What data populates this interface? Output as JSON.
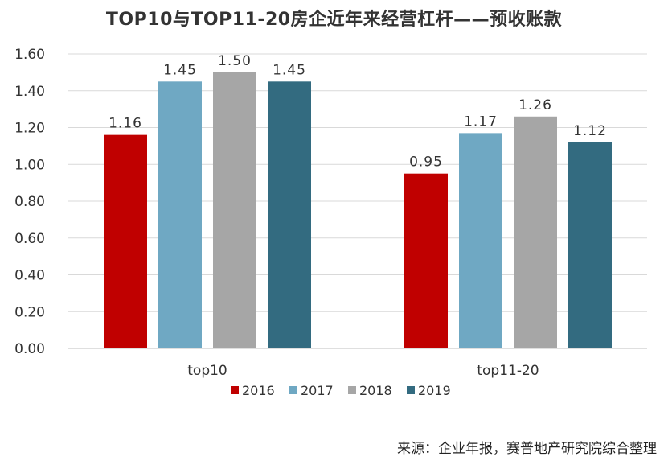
{
  "chart_data": {
    "type": "bar",
    "title": "TOP10与TOP11-20房企近年来经营杠杆——预收账款",
    "categories": [
      "top10",
      "top11-20"
    ],
    "series": [
      {
        "name": "2016",
        "values": [
          1.16,
          0.95
        ]
      },
      {
        "name": "2017",
        "values": [
          1.45,
          1.17
        ]
      },
      {
        "name": "2018",
        "values": [
          1.5,
          1.26
        ]
      },
      {
        "name": "2019",
        "values": [
          1.45,
          1.12
        ]
      }
    ],
    "colors": [
      "#c00000",
      "#6fa8c3",
      "#a6a6a6",
      "#336b80"
    ],
    "ylim": [
      0,
      1.6
    ],
    "yticks": [
      "0.00",
      "0.20",
      "0.40",
      "0.60",
      "0.80",
      "1.00",
      "1.20",
      "1.40",
      "1.60"
    ],
    "xlabel": "",
    "ylabel": "",
    "grid": true,
    "legend_position": "bottom",
    "source": "来源：企业年报，赛普地产研究院综合整理"
  }
}
